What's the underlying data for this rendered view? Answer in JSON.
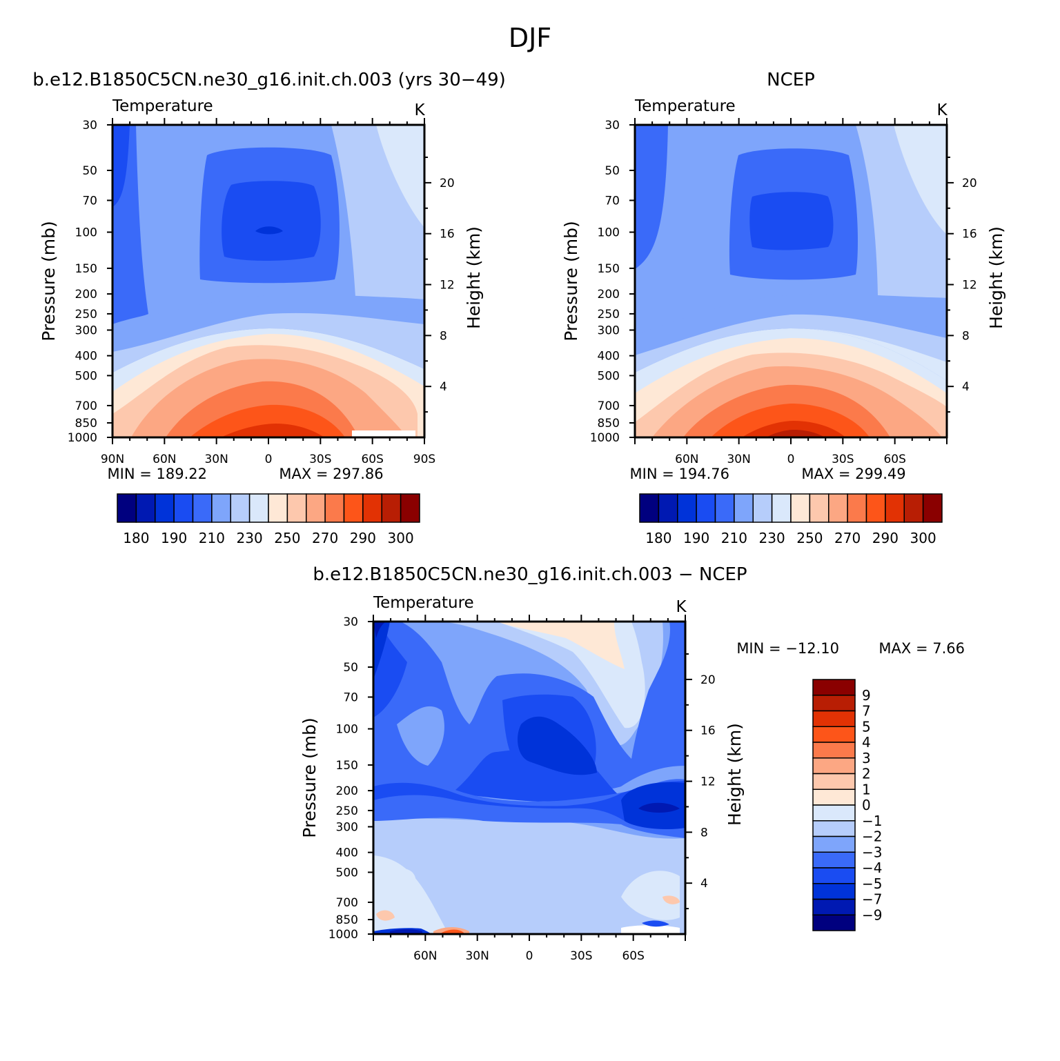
{
  "figure": {
    "title": "DJF"
  },
  "common": {
    "pressure_ticks": [
      "30",
      "50",
      "70",
      "100",
      "150",
      "200",
      "250",
      "300",
      "400",
      "500",
      "700",
      "850",
      "1000"
    ],
    "pressure_values": [
      30,
      50,
      70,
      100,
      150,
      200,
      250,
      300,
      400,
      500,
      700,
      850,
      1000
    ],
    "height_ticks": [
      "20",
      "16",
      "12",
      "8",
      "4"
    ],
    "height_values_km": [
      20,
      16,
      12,
      8,
      4
    ],
    "ylabel_left": "Pressure (mb)",
    "ylabel_right": "Height (km)",
    "panel_label": "Temperature",
    "units": "K"
  },
  "temp_colors": [
    "#00007f",
    "#0019b2",
    "#0033d9",
    "#1a4cf2",
    "#3a6af9",
    "#7ea5fb",
    "#b6cdfb",
    "#dae8fb",
    "#fee8d6",
    "#fdc8ad",
    "#fca783",
    "#fb7a4b",
    "#fd5519",
    "#e23204",
    "#b81e04",
    "#8a0000"
  ],
  "temp_colorbar_labels": [
    "180",
    "190",
    "210",
    "230",
    "250",
    "270",
    "290",
    "300"
  ],
  "diff_colors": [
    "#00007f",
    "#0019b2",
    "#0033d9",
    "#1a4cf2",
    "#3a6af9",
    "#7ea5fb",
    "#b6cdfb",
    "#dae8fb",
    "#fee8d6",
    "#fdc8ad",
    "#fca783",
    "#fb7a4b",
    "#fd5519",
    "#e23204",
    "#b81e04",
    "#8a0000"
  ],
  "diff_colorbar_labels": [
    "9",
    "7",
    "5",
    "4",
    "3",
    "2",
    "1",
    "0",
    "−1",
    "−2",
    "−3",
    "−4",
    "−5",
    "−7",
    "−9"
  ],
  "chart_data": [
    {
      "type": "heatmap",
      "title": "b.e12.B1850C5CN.ne30_g16.init.ch.003 (yrs 30−49)",
      "subtitle": "Temperature",
      "units": "K",
      "xlabel": "",
      "x_tick_labels": [
        "90N",
        "60N",
        "30N",
        "0",
        "30S",
        "60S",
        "90S"
      ],
      "x_tick_values": [
        90,
        60,
        30,
        0,
        -30,
        -60,
        -90
      ],
      "ylabel": "Pressure (mb)",
      "ylabel_right": "Height (km)",
      "min_text": "MIN =  189.22",
      "max_text": "MAX =  297.86",
      "min": 189.22,
      "max": 297.86
    },
    {
      "type": "heatmap",
      "title": "NCEP",
      "subtitle": "Temperature",
      "units": "K",
      "xlabel": "",
      "x_tick_labels": [
        "60N",
        "30N",
        "0",
        "30S",
        "60S"
      ],
      "x_tick_values": [
        60,
        30,
        0,
        -30,
        -60
      ],
      "ylabel": "Pressure (mb)",
      "ylabel_right": "Height (km)",
      "min_text": "MIN =  194.76",
      "max_text": "MAX =  299.49",
      "min": 194.76,
      "max": 299.49
    },
    {
      "type": "heatmap",
      "title": "b.e12.B1850C5CN.ne30_g16.init.ch.003 − NCEP",
      "subtitle": "Temperature",
      "units": "K",
      "xlabel": "",
      "x_tick_labels": [
        "60N",
        "30N",
        "0",
        "30S",
        "60S"
      ],
      "x_tick_values": [
        60,
        30,
        0,
        -30,
        -60
      ],
      "ylabel": "Pressure (mb)",
      "ylabel_right": "Height (km)",
      "min_text": "MIN = −12.10",
      "max_text": "MAX =    7.66",
      "min": -12.1,
      "max": 7.66
    }
  ]
}
